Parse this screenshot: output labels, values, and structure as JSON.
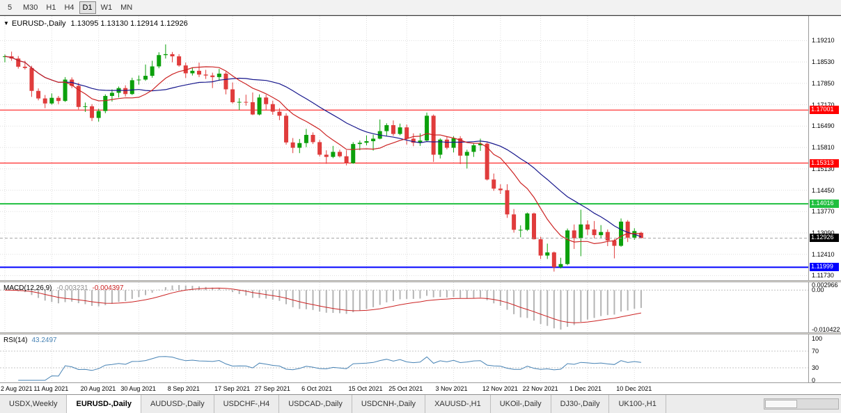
{
  "toolbar": {
    "timeframe_buttons": [
      {
        "label": "5",
        "active": false
      },
      {
        "label": "M30",
        "active": false
      },
      {
        "label": "H1",
        "active": false
      },
      {
        "label": "H4",
        "active": false
      },
      {
        "label": "D1",
        "active": true
      },
      {
        "label": "W1",
        "active": false
      },
      {
        "label": "MN",
        "active": false
      }
    ]
  },
  "chart": {
    "collapse_icon": "▼",
    "title_symbol": "EURUSD-,Daily",
    "title_ohlc": "1.13095 1.13130 1.12914 1.12926"
  },
  "indicators": {
    "macd": {
      "name": "MACD(12,26,9)",
      "value_main": "-0.003231",
      "value_signal": "-0.004397",
      "axis_max": "0.002966",
      "axis_zero": "0.00",
      "axis_min": "-0.010422"
    },
    "rsi": {
      "name": "RSI(14)",
      "value": "43.2497",
      "axis_labels": [
        {
          "v": 100,
          "text": "100"
        },
        {
          "v": 70,
          "text": "70"
        },
        {
          "v": 30,
          "text": "30"
        },
        {
          "v": 0,
          "text": "0"
        }
      ],
      "levels": [
        70,
        30
      ]
    }
  },
  "chart_data": {
    "type": "candlestick",
    "symbol": "EURUSD-",
    "timeframe": "Daily",
    "title": "EURUSD-,Daily 1.13095 1.13130 1.12914 1.12926",
    "ylim": {
      "min": 1.1163,
      "max": 1.1995
    },
    "price_axis_labels": [
      "1.19210",
      "1.18530",
      "1.17850",
      "1.17170",
      "1.16490",
      "1.15810",
      "1.15130",
      "1.14450",
      "1.13770",
      "1.13090",
      "1.12410",
      "1.11730"
    ],
    "x_labels": [
      {
        "i": 0,
        "text": "2 Aug 2021"
      },
      {
        "i": 7,
        "text": "11 Aug 2021"
      },
      {
        "i": 14,
        "text": "20 Aug 2021"
      },
      {
        "i": 20,
        "text": "30 Aug 2021"
      },
      {
        "i": 27,
        "text": "8 Sep 2021"
      },
      {
        "i": 34,
        "text": "17 Sep 2021"
      },
      {
        "i": 40,
        "text": "27 Sep 2021"
      },
      {
        "i": 47,
        "text": "6 Oct 2021"
      },
      {
        "i": 54,
        "text": "15 Oct 2021"
      },
      {
        "i": 60,
        "text": "25 Oct 2021"
      },
      {
        "i": 67,
        "text": "3 Nov 2021"
      },
      {
        "i": 74,
        "text": "12 Nov 2021"
      },
      {
        "i": 80,
        "text": "22 Nov 2021"
      },
      {
        "i": 87,
        "text": "1 Dec 2021"
      },
      {
        "i": 94,
        "text": "10 Dec 2021"
      }
    ],
    "h_lines": [
      {
        "value": 1.17001,
        "label": "1.17001",
        "color": "#FF0000",
        "width": 1
      },
      {
        "value": 1.15313,
        "label": "1.15313",
        "color": "#FF0000",
        "width": 1
      },
      {
        "value": 1.14016,
        "label": "1.14016",
        "color": "#1FBF3F",
        "width": 2
      },
      {
        "value": 1.11999,
        "label": "1.11999",
        "color": "#0000FF",
        "width": 2
      }
    ],
    "bid": {
      "value": 1.12926,
      "label": "1.12926"
    },
    "moving_averages": [
      {
        "period": 10,
        "color": "#CC2222"
      },
      {
        "period": 21,
        "color": "#16168C"
      }
    ],
    "macd_params": {
      "fast": 12,
      "slow": 26,
      "signal": 9
    },
    "rsi_period": 14,
    "colors": {
      "bull": "#0CA00C",
      "bear": "#E03C3C",
      "macd_hist": "#B4B4B4",
      "macd_signal": "#CC2222",
      "rsi_line": "#4682B4",
      "grid": "#DEDEDE",
      "bid_tag": "#000000"
    },
    "candles": [
      [
        1.187,
        1.1877,
        1.1852,
        1.1871
      ],
      [
        1.1871,
        1.1886,
        1.1857,
        1.1864
      ],
      [
        1.1864,
        1.1872,
        1.1832,
        1.1838
      ],
      [
        1.1838,
        1.1857,
        1.1829,
        1.1834
      ],
      [
        1.1834,
        1.1841,
        1.1742,
        1.1761
      ],
      [
        1.1761,
        1.1769,
        1.1731,
        1.1737
      ],
      [
        1.1737,
        1.1748,
        1.1706,
        1.1721
      ],
      [
        1.1721,
        1.1753,
        1.1717,
        1.1739
      ],
      [
        1.1739,
        1.1745,
        1.1719,
        1.1729
      ],
      [
        1.1729,
        1.1805,
        1.1726,
        1.1797
      ],
      [
        1.1797,
        1.1804,
        1.177,
        1.1777
      ],
      [
        1.1777,
        1.1787,
        1.1702,
        1.171
      ],
      [
        1.171,
        1.1724,
        1.1694,
        1.1712
      ],
      [
        1.1712,
        1.1719,
        1.1665,
        1.1675
      ],
      [
        1.1675,
        1.1704,
        1.1663,
        1.1697
      ],
      [
        1.1697,
        1.175,
        1.169,
        1.1745
      ],
      [
        1.1745,
        1.1766,
        1.1727,
        1.1755
      ],
      [
        1.1755,
        1.1775,
        1.174,
        1.177
      ],
      [
        1.177,
        1.1779,
        1.1743,
        1.1751
      ],
      [
        1.1751,
        1.1803,
        1.1748,
        1.1795
      ],
      [
        1.1795,
        1.181,
        1.1781,
        1.1797
      ],
      [
        1.1797,
        1.1845,
        1.1793,
        1.1809
      ],
      [
        1.1809,
        1.1857,
        1.1803,
        1.1839
      ],
      [
        1.1839,
        1.1884,
        1.1833,
        1.1875
      ],
      [
        1.1875,
        1.1909,
        1.1864,
        1.1878
      ],
      [
        1.1878,
        1.1885,
        1.1852,
        1.1871
      ],
      [
        1.1871,
        1.1878,
        1.1838,
        1.1842
      ],
      [
        1.1842,
        1.1851,
        1.1802,
        1.1817
      ],
      [
        1.1817,
        1.1836,
        1.181,
        1.1825
      ],
      [
        1.1825,
        1.1851,
        1.1805,
        1.1813
      ],
      [
        1.1813,
        1.1828,
        1.1799,
        1.181
      ],
      [
        1.181,
        1.1819,
        1.177,
        1.1805
      ],
      [
        1.1805,
        1.1831,
        1.1793,
        1.1816
      ],
      [
        1.1816,
        1.1822,
        1.175,
        1.1766
      ],
      [
        1.1766,
        1.1788,
        1.1721,
        1.1725
      ],
      [
        1.1725,
        1.1738,
        1.17,
        1.1726
      ],
      [
        1.1726,
        1.1749,
        1.1714,
        1.1725
      ],
      [
        1.1725,
        1.1756,
        1.1684,
        1.1686
      ],
      [
        1.1686,
        1.175,
        1.1683,
        1.174
      ],
      [
        1.174,
        1.1749,
        1.1701,
        1.1719
      ],
      [
        1.1719,
        1.173,
        1.1685,
        1.1695
      ],
      [
        1.1695,
        1.1706,
        1.1668,
        1.1682
      ],
      [
        1.1682,
        1.169,
        1.159,
        1.1597
      ],
      [
        1.1597,
        1.1611,
        1.1563,
        1.158
      ],
      [
        1.158,
        1.1608,
        1.1563,
        1.1595
      ],
      [
        1.1595,
        1.164,
        1.1582,
        1.1621
      ],
      [
        1.1621,
        1.1629,
        1.1592,
        1.1598
      ],
      [
        1.1598,
        1.1605,
        1.1552,
        1.1558
      ],
      [
        1.1558,
        1.1572,
        1.1529,
        1.1551
      ],
      [
        1.1551,
        1.1586,
        1.1547,
        1.1567
      ],
      [
        1.1567,
        1.1574,
        1.1549,
        1.1553
      ],
      [
        1.1553,
        1.1572,
        1.1524,
        1.1531
      ],
      [
        1.1531,
        1.1598,
        1.1529,
        1.1592
      ],
      [
        1.1592,
        1.1603,
        1.1572,
        1.1596
      ],
      [
        1.1596,
        1.1619,
        1.1588,
        1.1601
      ],
      [
        1.1601,
        1.1622,
        1.1571,
        1.1609
      ],
      [
        1.1609,
        1.167,
        1.1607,
        1.1633
      ],
      [
        1.1633,
        1.1658,
        1.1617,
        1.1652
      ],
      [
        1.1652,
        1.1667,
        1.1618,
        1.1624
      ],
      [
        1.1624,
        1.1657,
        1.162,
        1.1645
      ],
      [
        1.1645,
        1.1654,
        1.159,
        1.1609
      ],
      [
        1.1609,
        1.1626,
        1.1585,
        1.1596
      ],
      [
        1.1596,
        1.1626,
        1.1586,
        1.1603
      ],
      [
        1.1603,
        1.1692,
        1.16,
        1.1682
      ],
      [
        1.1682,
        1.1686,
        1.1535,
        1.1558
      ],
      [
        1.1558,
        1.161,
        1.1546,
        1.1606
      ],
      [
        1.1606,
        1.1616,
        1.1575,
        1.158
      ],
      [
        1.158,
        1.1617,
        1.1565,
        1.161
      ],
      [
        1.161,
        1.1617,
        1.1528,
        1.1555
      ],
      [
        1.1555,
        1.1574,
        1.1514,
        1.1567
      ],
      [
        1.1567,
        1.1594,
        1.1551,
        1.1588
      ],
      [
        1.1588,
        1.1609,
        1.157,
        1.1593
      ],
      [
        1.1593,
        1.1597,
        1.1476,
        1.1479
      ],
      [
        1.1479,
        1.1498,
        1.1443,
        1.145
      ],
      [
        1.145,
        1.1464,
        1.1433,
        1.1445
      ],
      [
        1.1445,
        1.1464,
        1.1357,
        1.1368
      ],
      [
        1.1368,
        1.1385,
        1.131,
        1.1319
      ],
      [
        1.1319,
        1.1333,
        1.1295,
        1.1319
      ],
      [
        1.1319,
        1.1374,
        1.1315,
        1.1371
      ],
      [
        1.1371,
        1.1374,
        1.1288,
        1.1289
      ],
      [
        1.1289,
        1.1297,
        1.1226,
        1.1237
      ],
      [
        1.1237,
        1.1275,
        1.1226,
        1.1247
      ],
      [
        1.1247,
        1.125,
        1.1186,
        1.12
      ],
      [
        1.12,
        1.123,
        1.1196,
        1.121
      ],
      [
        1.121,
        1.1323,
        1.1206,
        1.1317
      ],
      [
        1.1317,
        1.1336,
        1.1258,
        1.1292
      ],
      [
        1.1292,
        1.1383,
        1.1235,
        1.1336
      ],
      [
        1.1336,
        1.1349,
        1.1302,
        1.132
      ],
      [
        1.132,
        1.1347,
        1.1292,
        1.1302
      ],
      [
        1.1302,
        1.1334,
        1.1293,
        1.1312
      ],
      [
        1.1312,
        1.132,
        1.1267,
        1.1285
      ],
      [
        1.1285,
        1.129,
        1.1228,
        1.1268
      ],
      [
        1.1268,
        1.1355,
        1.1265,
        1.1345
      ],
      [
        1.1345,
        1.135,
        1.128,
        1.1294
      ],
      [
        1.1294,
        1.1324,
        1.1287,
        1.1315
      ],
      [
        1.13095,
        1.1313,
        1.12914,
        1.12926
      ]
    ]
  },
  "tabs": {
    "items": [
      {
        "label": "USDX,Weekly",
        "active": false
      },
      {
        "label": "EURUSD-,Daily",
        "active": true
      },
      {
        "label": "AUDUSD-,Daily",
        "active": false
      },
      {
        "label": "USDCHF-,H4",
        "active": false
      },
      {
        "label": "USDCAD-,Daily",
        "active": false
      },
      {
        "label": "USDCNH-,Daily",
        "active": false
      },
      {
        "label": "XAUUSD-,H1",
        "active": false
      },
      {
        "label": "UKOil-,Daily",
        "active": false
      },
      {
        "label": "DJ30-,Daily",
        "active": false
      },
      {
        "label": "UK100-,H1",
        "active": false
      }
    ]
  }
}
